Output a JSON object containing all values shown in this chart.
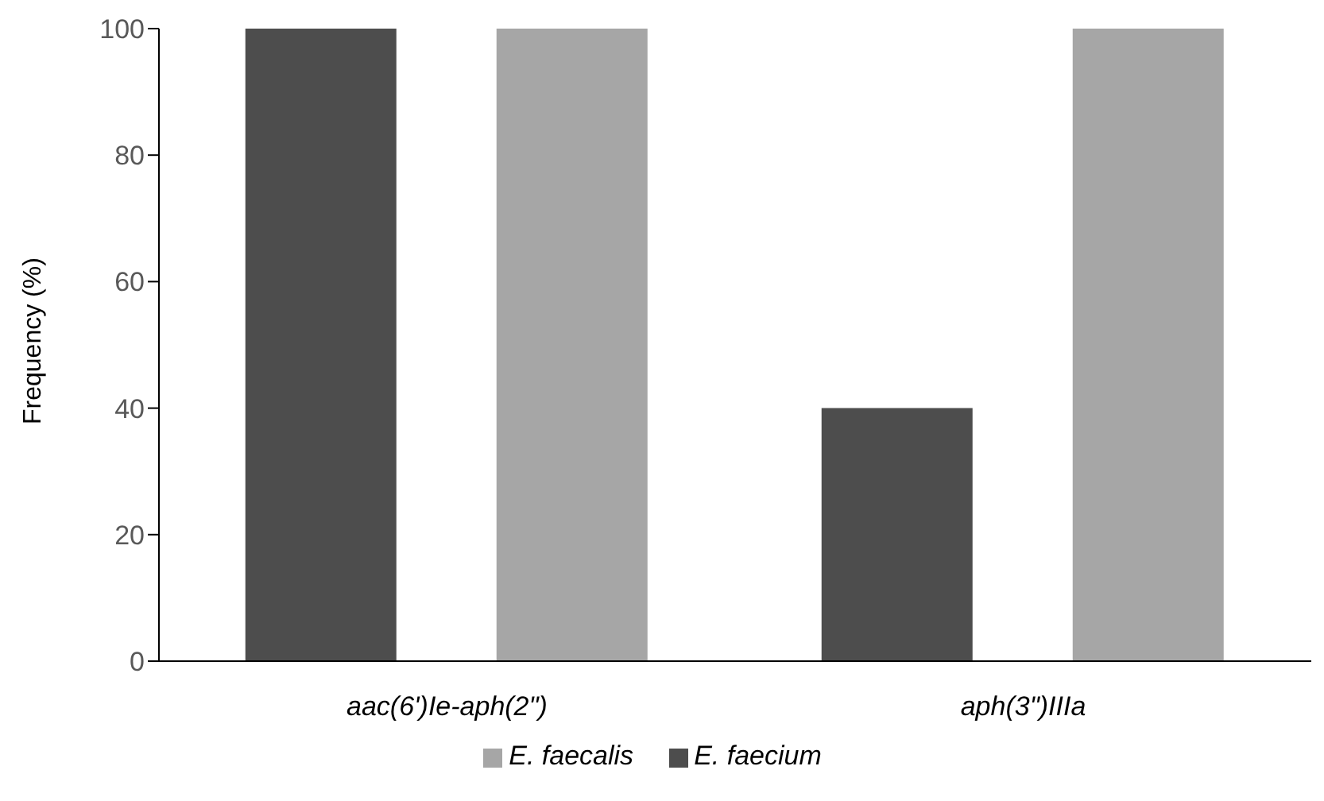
{
  "chart_data": {
    "type": "bar",
    "ylabel": "Frequency (%)",
    "categories": [
      "aac(6')Ie-aph(2\")",
      "aph(3\")IIIa"
    ],
    "series": [
      {
        "name": "E. faecium",
        "color": "#4d4d4d",
        "values": [
          100,
          40
        ]
      },
      {
        "name": "E. faecalis",
        "color": "#a6a6a6",
        "values": [
          100,
          100
        ]
      }
    ],
    "ylim": [
      0,
      100
    ],
    "yticks": [
      0,
      20,
      40,
      60,
      80,
      100
    ],
    "grid": false,
    "legend": "bottom"
  }
}
